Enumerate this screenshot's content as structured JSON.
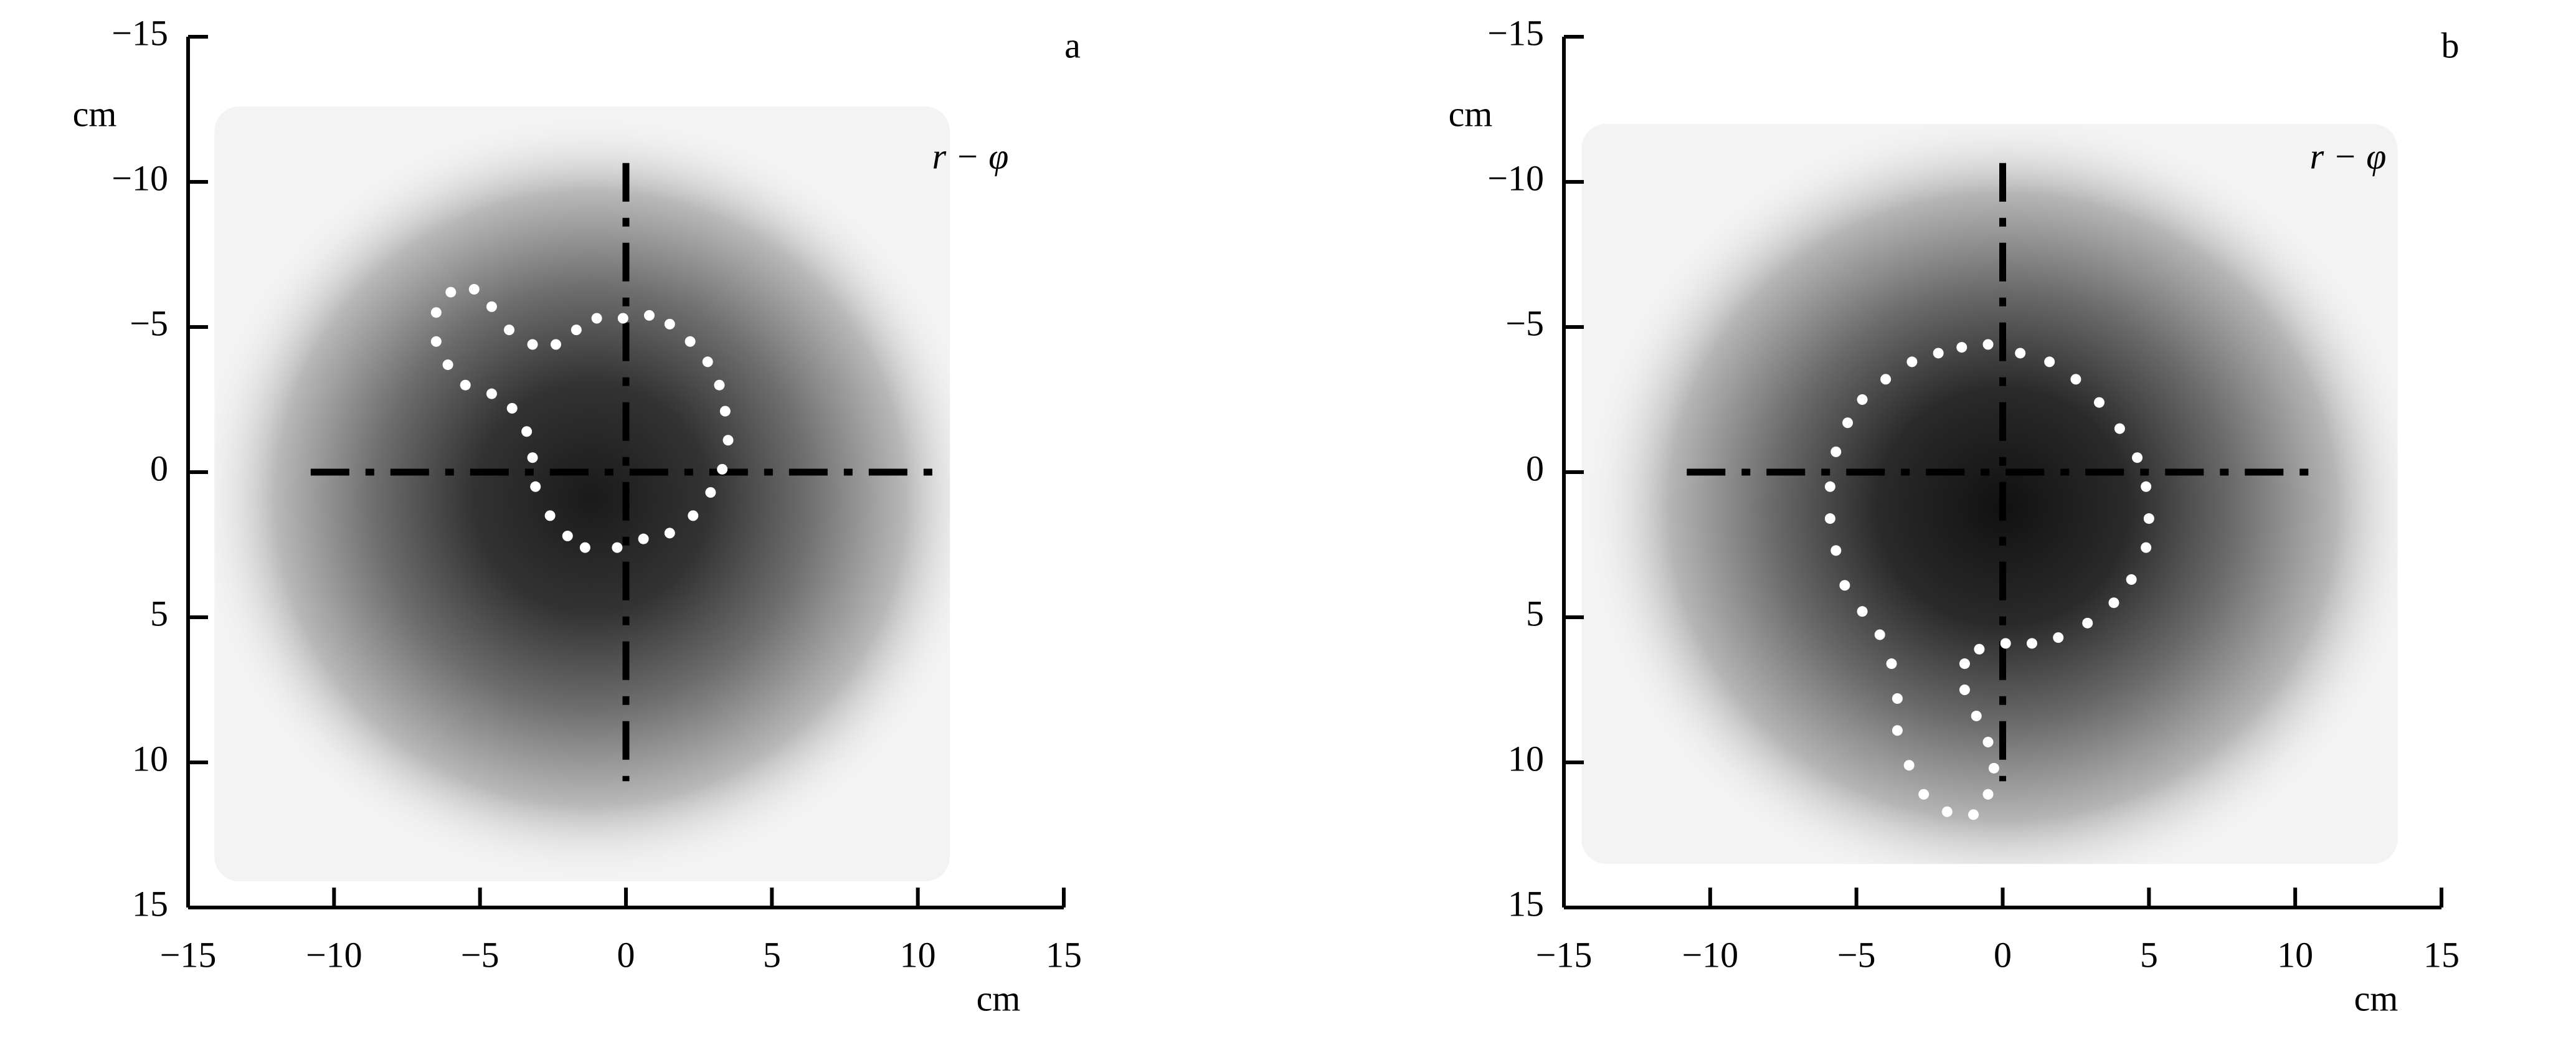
{
  "chart_data": [
    {
      "type": "scatter",
      "panel_label": "a",
      "annotation": "r − φ",
      "xlabel": "cm",
      "ylabel": "cm",
      "xlim": [
        -15,
        15
      ],
      "ylim": [
        -15,
        15
      ],
      "y_inverted": true,
      "xticks": [
        {
          "value": -15,
          "label": "−15"
        },
        {
          "value": -10,
          "label": "−10"
        },
        {
          "value": -5,
          "label": "−5"
        },
        0,
        5,
        10,
        15
      ],
      "yticks": [
        {
          "value": -15,
          "label": "−15"
        },
        {
          "value": -10,
          "label": "−10"
        },
        {
          "value": -5,
          "label": "−5"
        },
        0,
        5,
        10,
        15
      ],
      "series": [
        {
          "color": "#ffffff",
          "x": [
            -5.2,
            -6.0,
            -6.5,
            -6.5,
            -6.1,
            -5.5,
            -4.6,
            -3.9,
            -3.4,
            -3.2,
            -3.1,
            -2.6,
            -2.0,
            -1.4,
            -0.3,
            0.6,
            1.5,
            2.3,
            2.9,
            3.3,
            3.5,
            3.4,
            3.2,
            2.8,
            2.2,
            1.5,
            0.8,
            -0.1,
            -1.0,
            -1.7,
            -2.4,
            -3.2,
            -4.0,
            -4.6
          ],
          "y": [
            -6.3,
            -6.2,
            -5.5,
            -4.5,
            -3.7,
            -3.0,
            -2.7,
            -2.2,
            -1.4,
            -0.5,
            0.5,
            1.5,
            2.2,
            2.6,
            2.6,
            2.3,
            2.1,
            1.5,
            0.7,
            -0.1,
            -1.1,
            -2.1,
            -3.0,
            -3.8,
            -4.5,
            -5.1,
            -5.4,
            -5.3,
            -5.3,
            -4.9,
            -4.4,
            -4.4,
            -4.9,
            -5.7
          ]
        }
      ]
    },
    {
      "type": "scatter",
      "panel_label": "b",
      "annotation": "r − φ",
      "xlabel": "cm",
      "ylabel": "cm",
      "xlim": [
        -15,
        15
      ],
      "ylim": [
        -15,
        15
      ],
      "y_inverted": true,
      "xticks": [
        {
          "value": -15,
          "label": "−15"
        },
        {
          "value": -10,
          "label": "−10"
        },
        {
          "value": -5,
          "label": "−5"
        },
        0,
        5,
        10,
        15
      ],
      "yticks": [
        {
          "value": -15,
          "label": "−15"
        },
        {
          "value": -10,
          "label": "−10"
        },
        {
          "value": -5,
          "label": "−5"
        },
        0,
        5,
        10,
        15
      ],
      "series": [
        {
          "color": "#ffffff",
          "x": [
            -0.5,
            0.6,
            1.6,
            2.5,
            3.3,
            4.0,
            4.6,
            4.9,
            5.0,
            4.9,
            4.4,
            3.8,
            2.9,
            1.9,
            1.0,
            0.1,
            -0.8,
            -1.3,
            -1.3,
            -0.9,
            -0.5,
            -0.3,
            -0.5,
            -1.0,
            -1.9,
            -2.7,
            -3.2,
            -3.6,
            -3.6,
            -3.8,
            -4.2,
            -4.8,
            -5.4,
            -5.7,
            -5.9,
            -5.9,
            -5.7,
            -5.3,
            -4.8,
            -4.0,
            -3.1,
            -2.2,
            -1.4
          ],
          "y": [
            -4.4,
            -4.1,
            -3.8,
            -3.2,
            -2.4,
            -1.5,
            -0.5,
            0.5,
            1.6,
            2.6,
            3.7,
            4.5,
            5.2,
            5.7,
            5.9,
            5.9,
            6.1,
            6.6,
            7.5,
            8.4,
            9.3,
            10.2,
            11.1,
            11.8,
            11.7,
            11.1,
            10.1,
            8.9,
            7.8,
            6.6,
            5.6,
            4.8,
            3.9,
            2.7,
            1.6,
            0.5,
            -0.7,
            -1.7,
            -2.5,
            -3.2,
            -3.8,
            -4.1,
            -4.3
          ]
        }
      ]
    }
  ]
}
